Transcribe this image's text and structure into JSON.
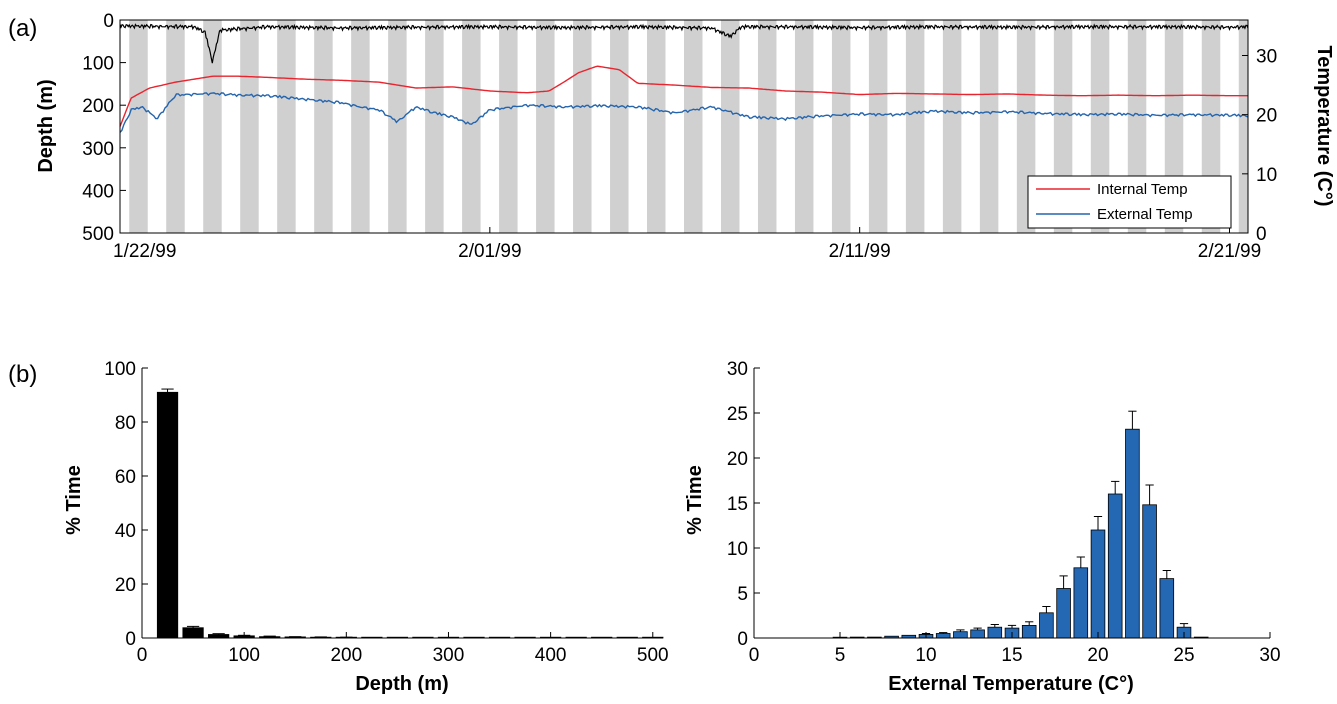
{
  "panel_labels": {
    "a": "(a)",
    "b": "(b)"
  },
  "colors": {
    "internal": "#e8252f",
    "external": "#2465ae",
    "depth": "#000000",
    "night_band": "#d0d0d0",
    "depth_bars": "#000000",
    "temp_bars": "#2468b4"
  },
  "chart_data": [
    {
      "id": "a",
      "type": "line",
      "title": "",
      "x_tick_labels": [
        "1/22/99",
        "2/01/99",
        "2/11/99",
        "2/21/99"
      ],
      "x_range_days": [
        0,
        30.5
      ],
      "x_tick_days": [
        0,
        10,
        20,
        30
      ],
      "left_axis": {
        "label": "Depth (m)",
        "range": [
          0,
          500
        ],
        "inverted": true,
        "ticks": [
          0,
          100,
          200,
          300,
          400,
          500
        ]
      },
      "right_axis": {
        "label": "Temperature (C°)",
        "range": [
          0,
          36
        ],
        "ticks": [
          0,
          10,
          20,
          30
        ]
      },
      "night_band_days": [
        0,
        1,
        2,
        3,
        4,
        5,
        6,
        7,
        8,
        9,
        10,
        11,
        12,
        13,
        14,
        15,
        16,
        17,
        18,
        19,
        20,
        21,
        22,
        23,
        24,
        25,
        26,
        27,
        28,
        29,
        30
      ],
      "legend": {
        "position": "bottom-right",
        "entries": [
          "Internal Temp",
          "External Temp"
        ]
      },
      "series": [
        {
          "name": "Internal Temp",
          "axis": "right",
          "x": [
            0,
            0.3,
            0.8,
            1.5,
            2.5,
            3.2,
            4,
            5,
            6,
            7,
            8,
            9,
            10,
            11,
            11.6,
            12,
            12.4,
            12.9,
            13.5,
            14,
            15,
            16,
            17,
            18,
            19,
            20,
            21,
            22,
            23,
            24,
            25,
            26,
            27,
            28,
            29,
            30,
            30.5
          ],
          "values": [
            18,
            22.8,
            24.5,
            25.5,
            26.5,
            26.5,
            26.3,
            26,
            25.8,
            25.5,
            24.5,
            24.7,
            24,
            23.7,
            24,
            25.5,
            27.1,
            28.2,
            27.6,
            25.3,
            25,
            24.6,
            24.5,
            24,
            23.8,
            23.4,
            23.6,
            23.5,
            23.4,
            23.5,
            23.3,
            23.2,
            23.3,
            23.2,
            23.3,
            23.2,
            23.2
          ]
        },
        {
          "name": "External Temp",
          "axis": "right",
          "x": [
            0,
            0.3,
            0.6,
            1,
            1.5,
            2.5,
            3.2,
            4,
            5,
            6,
            6.5,
            7,
            7.5,
            8,
            8.5,
            9,
            9.5,
            10,
            11,
            12,
            13,
            14,
            15,
            16,
            17,
            18,
            19,
            20,
            21,
            22,
            23,
            24,
            25,
            26,
            27,
            28,
            29,
            30,
            30.5
          ],
          "values": [
            17,
            21,
            21.5,
            19.5,
            23.5,
            23.8,
            23.5,
            23.4,
            22.8,
            22.2,
            21.5,
            21,
            19,
            21.5,
            20.5,
            19.8,
            18.5,
            21,
            21.8,
            21.5,
            21.7,
            21.5,
            20.5,
            21.5,
            19.8,
            19.5,
            20,
            20.3,
            20.2,
            20.8,
            20.5,
            20.7,
            20.4,
            20.2,
            20.3,
            20.1,
            20.2,
            20.1,
            20.0
          ]
        },
        {
          "name": "Depth",
          "axis": "left",
          "x": [
            0,
            2,
            2.3,
            2.5,
            2.7,
            4,
            6,
            8,
            10,
            12,
            14,
            16,
            16.5,
            16.8,
            18,
            20,
            22,
            24,
            26,
            28,
            30,
            30.5
          ],
          "values": [
            10,
            12,
            25,
            95,
            20,
            12,
            15,
            13,
            12,
            14,
            12,
            15,
            35,
            12,
            12,
            14,
            12,
            13,
            12,
            12,
            13,
            12
          ]
        }
      ]
    },
    {
      "id": "b-depth",
      "type": "bar",
      "title": "",
      "xlabel": "Depth (m)",
      "ylabel": "% Time",
      "xlim": [
        0,
        510
      ],
      "ylim": [
        0,
        100
      ],
      "x_ticks": [
        0,
        100,
        200,
        300,
        400,
        500
      ],
      "y_ticks": [
        0,
        20,
        40,
        60,
        80,
        100
      ],
      "bin_width": 25,
      "x": [
        25,
        50,
        75,
        100,
        125,
        150,
        175,
        200,
        225,
        250,
        275,
        300,
        325,
        350,
        375,
        400,
        425,
        450,
        475,
        500
      ],
      "values": [
        91,
        3.8,
        1.3,
        0.8,
        0.5,
        0.4,
        0.3,
        0.2,
        0.1,
        0.1,
        0.1,
        0.1,
        0.05,
        0.05,
        0.05,
        0.05,
        0.05,
        0.05,
        0.05,
        0.05
      ],
      "errors": [
        1.2,
        0.5,
        0.3,
        0.2,
        0.2,
        0.1,
        0.1,
        0.1,
        0,
        0,
        0,
        0,
        0,
        0,
        0,
        0,
        0,
        0,
        0,
        0
      ]
    },
    {
      "id": "b-temp",
      "type": "bar",
      "title": "",
      "xlabel": "External Temperature (C°)",
      "ylabel": "% Time",
      "xlim": [
        0,
        30
      ],
      "ylim": [
        0,
        30
      ],
      "x_ticks": [
        0,
        5,
        10,
        15,
        20,
        25,
        30
      ],
      "y_ticks": [
        0,
        5,
        10,
        15,
        20,
        25,
        30
      ],
      "bin_width": 1,
      "x": [
        5,
        6,
        7,
        8,
        9,
        10,
        11,
        12,
        13,
        14,
        15,
        16,
        17,
        18,
        19,
        20,
        21,
        22,
        23,
        24,
        25,
        26
      ],
      "values": [
        0.05,
        0.1,
        0.1,
        0.2,
        0.3,
        0.4,
        0.5,
        0.7,
        0.9,
        1.2,
        1.1,
        1.4,
        2.8,
        5.5,
        7.8,
        12,
        16,
        23.2,
        14.8,
        6.6,
        1.2,
        0.1
      ],
      "errors": [
        0,
        0,
        0,
        0,
        0,
        0.1,
        0.1,
        0.2,
        0.2,
        0.3,
        0.3,
        0.4,
        0.7,
        1.4,
        1.2,
        1.5,
        1.4,
        2.0,
        2.2,
        0.9,
        0.4,
        0
      ]
    }
  ]
}
